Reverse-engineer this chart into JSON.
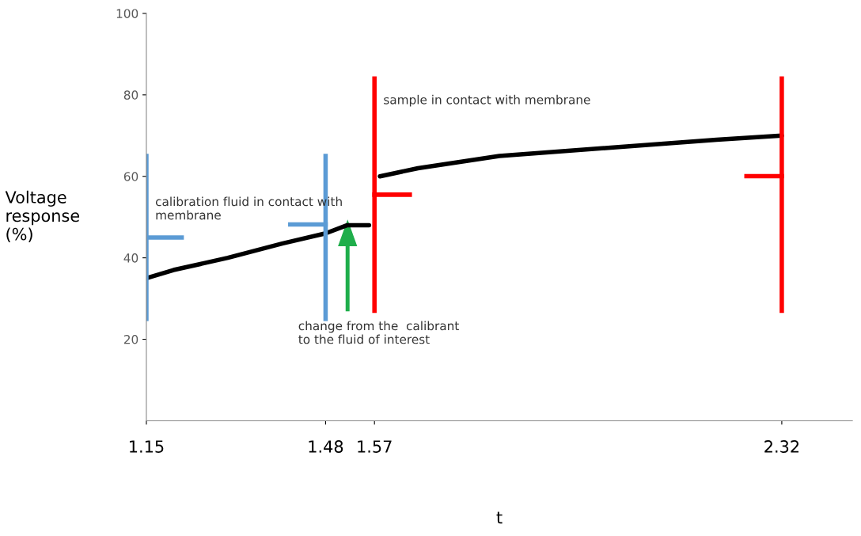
{
  "chart_data": {
    "type": "line",
    "xlabel": "t",
    "ylabel": "Voltage\nresponse\n(%)",
    "x": [
      1.15,
      1.2,
      1.3,
      1.4,
      1.48,
      1.52,
      1.56,
      1.57,
      1.58,
      1.65,
      1.8,
      2.0,
      2.2,
      2.32
    ],
    "series": [
      {
        "color": "#000000",
        "values": [
          35,
          37,
          40,
          43.5,
          46,
          48,
          48,
          null,
          60,
          62,
          65,
          67,
          69,
          70
        ]
      }
    ],
    "xlim": [
      1.15,
      2.45
    ],
    "xticks": [
      1.15,
      1.48,
      1.57,
      2.32
    ],
    "ylim": [
      0,
      100
    ],
    "yticks": [
      20,
      40,
      60,
      80,
      100
    ],
    "grid": false,
    "legend": false,
    "marker": "none",
    "line_style": "solid",
    "ref_lines": [
      {
        "axis": "x",
        "value": 1.15,
        "label": "calibration fluid in contact with\nmembrane",
        "color": "#5b9bd5"
      },
      {
        "axis": "x",
        "value": 1.48,
        "color": "#5b9bd5"
      },
      {
        "axis": "x",
        "value": 1.57,
        "label": "sample in contact with membrane",
        "color": "#ff0000"
      },
      {
        "axis": "x",
        "value": 2.32,
        "color": "#ff0000"
      }
    ],
    "annotations": [
      "change from the  calibrant\nto the fluid of interest"
    ]
  }
}
